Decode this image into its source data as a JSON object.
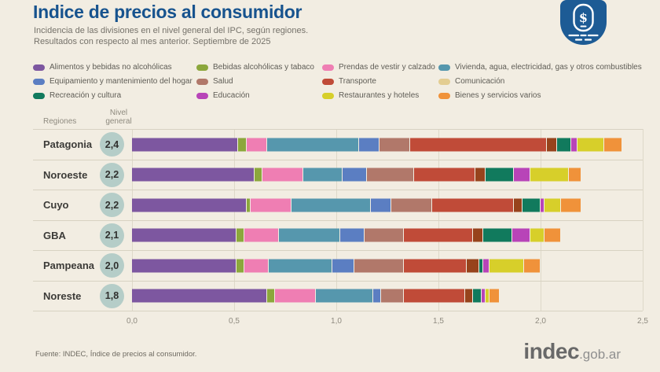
{
  "page": {
    "background": "#f2ede2"
  },
  "header": {
    "title": "Indice de precios al consumidor",
    "title_color": "#17538e",
    "subtitle_line1": "Incidencia de las divisiones en el nivel general del IPC, según regiones.",
    "subtitle_line2": "Resultados con respecto al mes anterior. Septiembre de 2025"
  },
  "badge": {
    "color": "#1d5b95",
    "symbol": "$",
    "description": "ipc-price-tag-badge"
  },
  "chart_data": {
    "type": "bar",
    "orientation": "horizontal",
    "stacked": true,
    "title": "Indice de precios al consumidor",
    "xlabel": "",
    "ylabel": "",
    "grid": true,
    "legend_position": "top",
    "columns": {
      "regions": "Regiones",
      "level": "Nivel general"
    },
    "x_axis": {
      "range": [
        0,
        2.5
      ],
      "ticks": [
        "0,0",
        "0,5",
        "1,0",
        "1,5",
        "2,0",
        "2,5"
      ]
    },
    "categories": [
      {
        "label": "Alimentos y bebidas no alcohólicas",
        "color": "#7d57a0"
      },
      {
        "label": "Bebidas alcohólicas y tabaco",
        "color": "#8ca73c"
      },
      {
        "label": "Prendas de vestir y calzado",
        "color": "#ef7eb3"
      },
      {
        "label": "Vivienda, agua, electricidad, gas y otros combustibles",
        "color": "#5697ad"
      },
      {
        "label": "Equipamiento y mantenimiento del hogar",
        "color": "#5b7ec2"
      },
      {
        "label": "Salud",
        "color": "#b1786a"
      },
      {
        "label": "Transporte",
        "color": "#c04b38"
      },
      {
        "label": "Comunicación",
        "color": "#97431c",
        "legend_color": "#e3cd92"
      },
      {
        "label": "Recreación y cultura",
        "color": "#117a5d"
      },
      {
        "label": "Educación",
        "color": "#b844b8"
      },
      {
        "label": "Restaurantes y hoteles",
        "color": "#d7cf2a"
      },
      {
        "label": "Bienes y servicios varios",
        "color": "#f0923a"
      }
    ],
    "regions": [
      {
        "name": "Patagonia",
        "nivel_general": "2,4",
        "values": [
          0.52,
          0.04,
          0.1,
          0.45,
          0.1,
          0.15,
          0.67,
          0.05,
          0.07,
          0.03,
          0.13,
          0.09
        ]
      },
      {
        "name": "Noroeste",
        "nivel_general": "2,2",
        "values": [
          0.6,
          0.04,
          0.2,
          0.19,
          0.12,
          0.23,
          0.3,
          0.05,
          0.14,
          0.08,
          0.19,
          0.06
        ]
      },
      {
        "name": "Cuyo",
        "nivel_general": "2,2",
        "values": [
          0.56,
          0.02,
          0.2,
          0.39,
          0.1,
          0.2,
          0.4,
          0.04,
          0.09,
          0.02,
          0.08,
          0.1
        ]
      },
      {
        "name": "GBA",
        "nivel_general": "2,1",
        "values": [
          0.51,
          0.04,
          0.17,
          0.3,
          0.12,
          0.19,
          0.34,
          0.05,
          0.14,
          0.09,
          0.07,
          0.08
        ]
      },
      {
        "name": "Pampeana",
        "nivel_general": "2,0",
        "values": [
          0.51,
          0.04,
          0.12,
          0.31,
          0.11,
          0.24,
          0.31,
          0.06,
          0.02,
          0.03,
          0.17,
          0.08
        ]
      },
      {
        "name": "Noreste",
        "nivel_general": "1,8",
        "values": [
          0.66,
          0.04,
          0.2,
          0.28,
          0.04,
          0.11,
          0.3,
          0.04,
          0.04,
          0.02,
          0.02,
          0.05
        ]
      }
    ]
  },
  "footer": {
    "source": "Fuente: INDEC, Índice de precios al consumidor.",
    "logo_main": "indec",
    "logo_suffix": ".gob.ar"
  }
}
